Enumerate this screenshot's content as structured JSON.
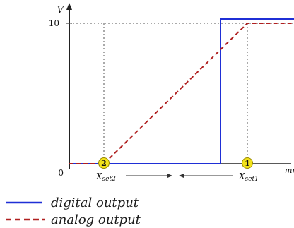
{
  "diagram": {
    "y_axis_label": "V",
    "x_axis_label": "mm",
    "y_tick_10": "10",
    "origin_label": "0",
    "marker_2": {
      "number": "2",
      "label_main": "X",
      "label_sub": "set2"
    },
    "marker_1": {
      "number": "1",
      "label_main": "X",
      "label_sub": "set1"
    }
  },
  "legend": {
    "digital_output": "digital output",
    "analog_output": "analog output"
  },
  "colors": {
    "digital": "#1f2fd6",
    "analog": "#b02020",
    "marker_fill": "#f2e21a",
    "axis": "#222222"
  }
}
